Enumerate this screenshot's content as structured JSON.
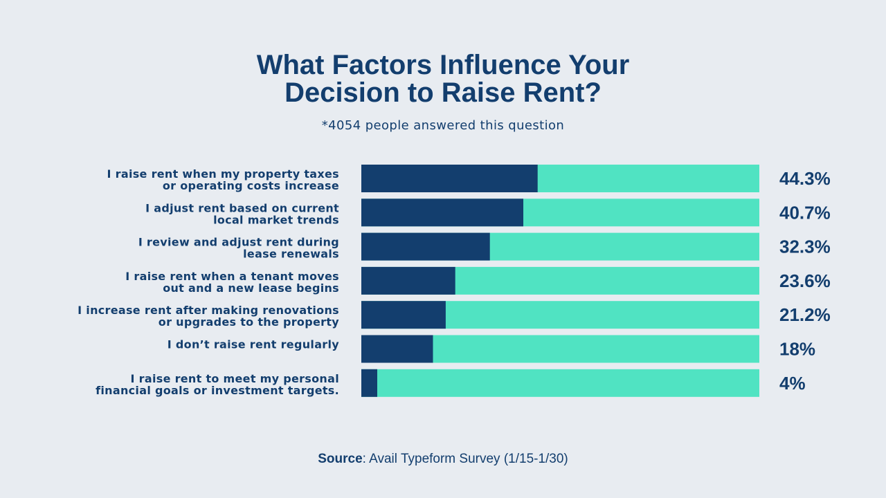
{
  "title_line1": "What Factors Influence Your",
  "title_line2": "Decision to Raise Rent?",
  "subtitle": "*4054 people answered this question",
  "source": {
    "label": "Source",
    "text": ": Avail Typeform Survey (1/15-1/30)"
  },
  "colors": {
    "background": "#e8ecf1",
    "bar_fill": "#133e6e",
    "bar_track": "#50e3c2",
    "text": "#133e6e"
  },
  "chart_data": {
    "type": "bar",
    "orientation": "horizontal",
    "title": "What Factors Influence Your Decision to Raise Rent?",
    "subtitle": "*4054 people answered this question",
    "xlim": [
      0,
      100
    ],
    "grid": false,
    "categories": [
      [
        "I raise rent when my property taxes",
        "or operating costs increase"
      ],
      [
        "I adjust rent based on current",
        "local market trends"
      ],
      [
        "I review and adjust rent during",
        "lease renewals"
      ],
      [
        "I raise rent when a tenant moves",
        "out and a new lease begins"
      ],
      [
        "I increase rent after making renovations",
        "or upgrades to the property"
      ],
      [
        "I don’t raise rent regularly"
      ],
      [
        "I raise rent to meet my personal",
        "financial goals or investment targets."
      ]
    ],
    "values": [
      44.3,
      40.7,
      32.3,
      23.6,
      21.2,
      18,
      4
    ],
    "value_labels": [
      "44.3%",
      "40.7%",
      "32.3%",
      "23.6%",
      "21.2%",
      "18%",
      "4%"
    ]
  }
}
